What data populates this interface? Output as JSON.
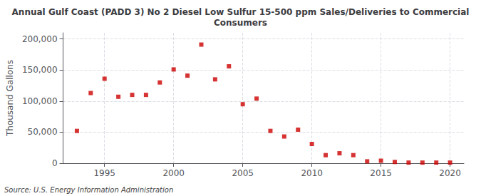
{
  "chart_data": {
    "type": "scatter",
    "title": "Annual Gulf Coast (PADD 3) No 2 Diesel Low Sulfur 15-500 ppm Sales/Deliveries to Commercial\nConsumers",
    "ylabel": "Thousand Gallons",
    "annotation": "Source: U.S. Energy Information Administration",
    "color": "#cc0000",
    "marker": "square",
    "grid": true,
    "xlim": [
      1992,
      2021
    ],
    "xticks": [
      1995,
      2000,
      2005,
      2010,
      2015,
      2020
    ],
    "ylim": [
      0,
      210000
    ],
    "yticks": [
      0,
      {
        "value": 50000,
        "label": "50,000"
      },
      {
        "value": 100000,
        "label": "100,000"
      },
      {
        "value": 150000,
        "label": "150,000"
      },
      {
        "value": 200000,
        "label": "200,000"
      }
    ],
    "x": [
      1993,
      1994,
      1995,
      1996,
      1997,
      1998,
      1999,
      2000,
      2001,
      2002,
      2003,
      2004,
      2005,
      2006,
      2007,
      2008,
      2009,
      2010,
      2011,
      2012,
      2013,
      2014,
      2015,
      2016,
      2017,
      2018,
      2019,
      2020
    ],
    "values": [
      52000,
      113000,
      136000,
      107000,
      110000,
      110000,
      130000,
      151000,
      141000,
      191000,
      135000,
      156000,
      95000,
      104000,
      52000,
      43000,
      54000,
      31000,
      13000,
      16000,
      13000,
      3000,
      4000,
      2000,
      1000,
      1000,
      1000,
      1000
    ]
  }
}
